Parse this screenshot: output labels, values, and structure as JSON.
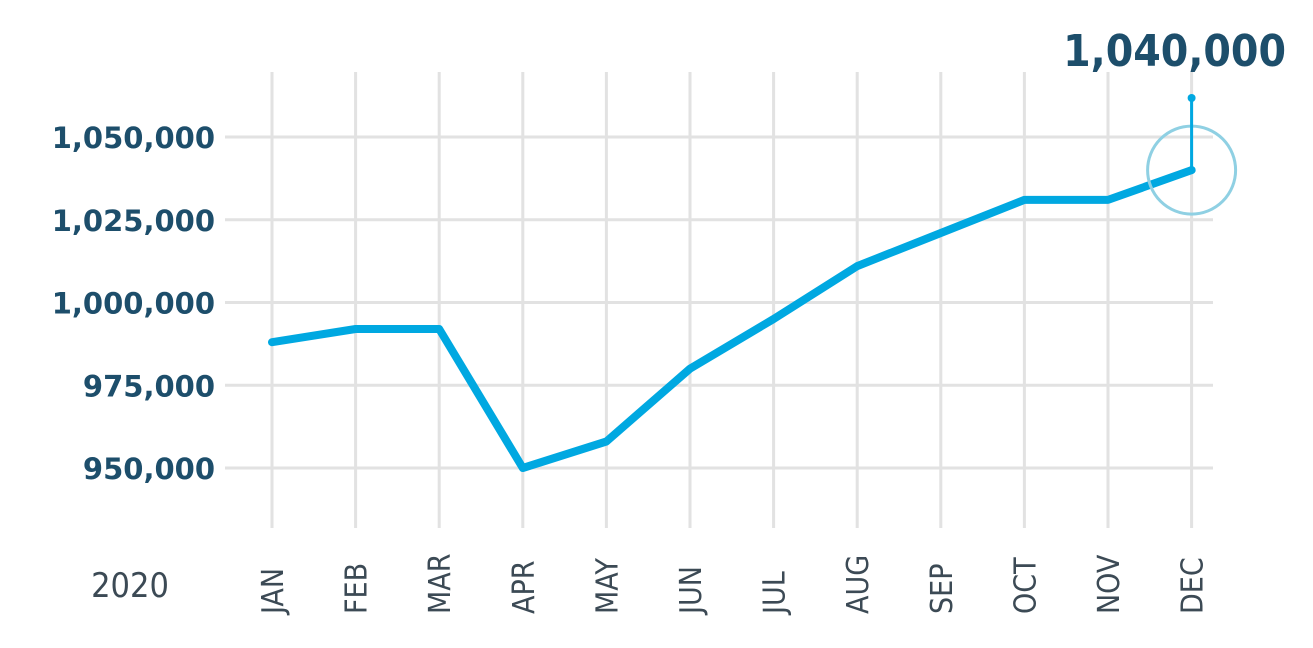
{
  "chart_data": {
    "type": "line",
    "categories": [
      "JAN",
      "FEB",
      "MAR",
      "APR",
      "MAY",
      "JUN",
      "JUL",
      "AUG",
      "SEP",
      "OCT",
      "NOV",
      "DEC"
    ],
    "series": [
      {
        "values": [
          988000,
          992000,
          992000,
          950000,
          958000,
          980000,
          995000,
          1011000,
          1021000,
          1031000,
          1031000,
          1040000
        ]
      }
    ],
    "yticks": [
      950000,
      975000,
      1000000,
      1025000,
      1050000
    ],
    "ytick_labels": [
      "950,000",
      "975,000",
      "1,000,000",
      "1,025,000",
      "1,050,000"
    ],
    "ylim": [
      950000,
      1050000
    ],
    "year_label": "2020",
    "annotation": {
      "category": "DEC",
      "value": 1040000,
      "text": "1,040,000"
    },
    "grid": true,
    "colors": {
      "line": "#00a8e1",
      "grid": "#e2e2e2",
      "highlight": "#8fd0e3",
      "ytick": "#1d4e6b",
      "xtick": "#3c4a55"
    }
  }
}
